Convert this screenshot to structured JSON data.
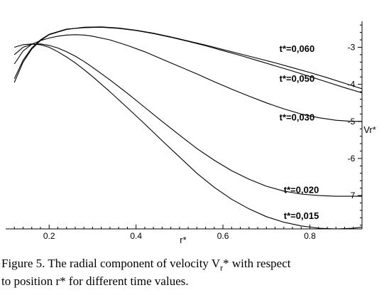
{
  "chart_data": {
    "type": "line",
    "xlabel": "r*",
    "ylabel": "Vr*",
    "x_ticks": [
      0.2,
      0.4,
      0.6,
      0.8
    ],
    "y_ticks": [
      -3,
      -4,
      -5,
      -6,
      -7
    ],
    "xlim": [
      0.1,
      0.92
    ],
    "ylim": [
      -7.9,
      -2.3
    ],
    "series": [
      {
        "name": "t*=0,060",
        "x": [
          0.12,
          0.14,
          0.16,
          0.18,
          0.2,
          0.24,
          0.28,
          0.32,
          0.36,
          0.4,
          0.44,
          0.48,
          0.52,
          0.56,
          0.6,
          0.64,
          0.68,
          0.72,
          0.76,
          0.8,
          0.84,
          0.88,
          0.92
        ],
        "y": [
          -3.95,
          -3.4,
          -3.05,
          -2.82,
          -2.66,
          -2.52,
          -2.46,
          -2.45,
          -2.48,
          -2.54,
          -2.62,
          -2.72,
          -2.83,
          -2.94,
          -3.06,
          -3.18,
          -3.3,
          -3.42,
          -3.55,
          -3.68,
          -3.82,
          -3.97,
          -4.12
        ]
      },
      {
        "name": "t*=0,050",
        "x": [
          0.12,
          0.14,
          0.16,
          0.18,
          0.2,
          0.24,
          0.28,
          0.32,
          0.36,
          0.4,
          0.44,
          0.48,
          0.52,
          0.56,
          0.6,
          0.64,
          0.68,
          0.72,
          0.76,
          0.8,
          0.84,
          0.88,
          0.92
        ],
        "y": [
          -3.85,
          -3.35,
          -3.02,
          -2.8,
          -2.65,
          -2.51,
          -2.47,
          -2.46,
          -2.49,
          -2.55,
          -2.63,
          -2.73,
          -2.84,
          -2.96,
          -3.09,
          -3.22,
          -3.36,
          -3.5,
          -3.64,
          -3.79,
          -3.94,
          -4.09,
          -4.23
        ]
      },
      {
        "name": "t*=0,030",
        "x": [
          0.12,
          0.14,
          0.16,
          0.18,
          0.2,
          0.22,
          0.24,
          0.26,
          0.28,
          0.3,
          0.34,
          0.38,
          0.42,
          0.46,
          0.5,
          0.54,
          0.58,
          0.62,
          0.66,
          0.7,
          0.74,
          0.78,
          0.82,
          0.86,
          0.9,
          0.92
        ],
        "y": [
          -3.45,
          -3.1,
          -2.92,
          -2.82,
          -2.75,
          -2.7,
          -2.67,
          -2.66,
          -2.67,
          -2.7,
          -2.8,
          -2.95,
          -3.12,
          -3.32,
          -3.52,
          -3.72,
          -3.93,
          -4.13,
          -4.32,
          -4.5,
          -4.66,
          -4.8,
          -4.9,
          -4.97,
          -5.0,
          -5.0
        ]
      },
      {
        "name": "t*=0,020",
        "x": [
          0.12,
          0.14,
          0.16,
          0.18,
          0.2,
          0.22,
          0.24,
          0.26,
          0.28,
          0.3,
          0.34,
          0.38,
          0.42,
          0.46,
          0.5,
          0.54,
          0.58,
          0.62,
          0.66,
          0.7,
          0.74,
          0.78,
          0.82,
          0.86,
          0.9,
          0.92
        ],
        "y": [
          -3.2,
          -3.0,
          -2.92,
          -2.91,
          -2.95,
          -3.02,
          -3.12,
          -3.24,
          -3.38,
          -3.54,
          -3.88,
          -4.24,
          -4.62,
          -5.0,
          -5.37,
          -5.73,
          -6.05,
          -6.33,
          -6.56,
          -6.75,
          -6.88,
          -6.96,
          -7.0,
          -7.02,
          -7.02,
          -7.02
        ]
      },
      {
        "name": "t*=0,015",
        "x": [
          0.12,
          0.14,
          0.16,
          0.18,
          0.2,
          0.22,
          0.24,
          0.26,
          0.28,
          0.3,
          0.34,
          0.38,
          0.42,
          0.46,
          0.5,
          0.54,
          0.58,
          0.62,
          0.66,
          0.7,
          0.74,
          0.78,
          0.82,
          0.86,
          0.9,
          0.92
        ],
        "y": [
          -3.0,
          -2.93,
          -2.91,
          -2.93,
          -3.0,
          -3.12,
          -3.26,
          -3.42,
          -3.6,
          -3.79,
          -4.2,
          -4.63,
          -5.07,
          -5.52,
          -5.96,
          -6.4,
          -6.78,
          -7.1,
          -7.36,
          -7.57,
          -7.72,
          -7.82,
          -7.88,
          -7.9,
          -7.88,
          -7.85
        ]
      }
    ]
  },
  "curve_labels": [
    "t*=0,060",
    "t*=0,050",
    "t*=0,030",
    "t*=0,020",
    "t*=0,015"
  ],
  "caption": {
    "line1_prefix": "Figure 5. The radial component of velocity V",
    "line1_sub": "r",
    "line1_suffix": "* with respect",
    "line2": "to position r* for different time values."
  }
}
